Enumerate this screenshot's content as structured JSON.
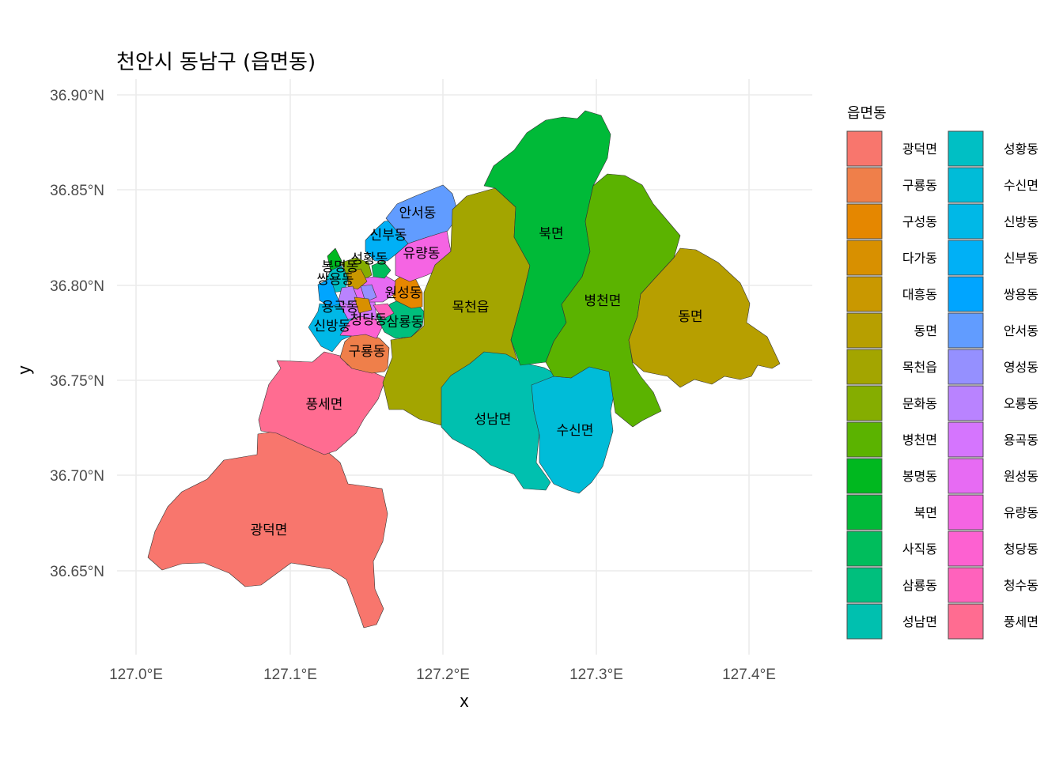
{
  "title": "천안시 동남구 (읍면동)",
  "axes": {
    "x_label": "x",
    "y_label": "y",
    "x_ticks": [
      "127.0°E",
      "127.1°E",
      "127.2°E",
      "127.3°E",
      "127.4°E"
    ],
    "y_ticks": [
      "36.90°N",
      "36.85°N",
      "36.80°N",
      "36.75°N",
      "36.70°N",
      "36.65°N"
    ]
  },
  "legend": {
    "title": "읍면동",
    "items": [
      {
        "label": "광덕면",
        "color": "#F8766D"
      },
      {
        "label": "구룡동",
        "color": "#EF7F4A"
      },
      {
        "label": "구성동",
        "color": "#E58700"
      },
      {
        "label": "다가동",
        "color": "#D89000"
      },
      {
        "label": "대흥동",
        "color": "#C99800"
      },
      {
        "label": "동면",
        "color": "#B79F00"
      },
      {
        "label": "목천읍",
        "color": "#A3A500"
      },
      {
        "label": "문화동",
        "color": "#85AD00"
      },
      {
        "label": "병천면",
        "color": "#5BB300"
      },
      {
        "label": "봉명동",
        "color": "#00B81F"
      },
      {
        "label": "북면",
        "color": "#00BA38"
      },
      {
        "label": "사직동",
        "color": "#00BD5C"
      },
      {
        "label": "삼룡동",
        "color": "#00BF7D"
      },
      {
        "label": "성남면",
        "color": "#00C0AF"
      },
      {
        "label": "성황동",
        "color": "#00BFC4"
      },
      {
        "label": "수신면",
        "color": "#00BCD8"
      },
      {
        "label": "신방동",
        "color": "#00B8E7"
      },
      {
        "label": "신부동",
        "color": "#00B0F6"
      },
      {
        "label": "쌍용동",
        "color": "#00A5FF"
      },
      {
        "label": "안서동",
        "color": "#619CFF"
      },
      {
        "label": "영성동",
        "color": "#9590FF"
      },
      {
        "label": "오룡동",
        "color": "#B983FF"
      },
      {
        "label": "용곡동",
        "color": "#D575FE"
      },
      {
        "label": "원성동",
        "color": "#E76BF3"
      },
      {
        "label": "유량동",
        "color": "#F564E3"
      },
      {
        "label": "청당동",
        "color": "#FD61D1"
      },
      {
        "label": "청수동",
        "color": "#FF62BC"
      },
      {
        "label": "풍세면",
        "color": "#FF6C91"
      }
    ]
  },
  "map_labels": [
    "광덕면",
    "풍세면",
    "구룡동",
    "신방동",
    "청당동",
    "삼룡동",
    "목천읍",
    "성남면",
    "수신면",
    "북면",
    "병천면",
    "동면",
    "안서동",
    "신부동",
    "유량동",
    "원성동",
    "봉명동",
    "성황동",
    "쌍용동",
    "용곡동"
  ]
}
